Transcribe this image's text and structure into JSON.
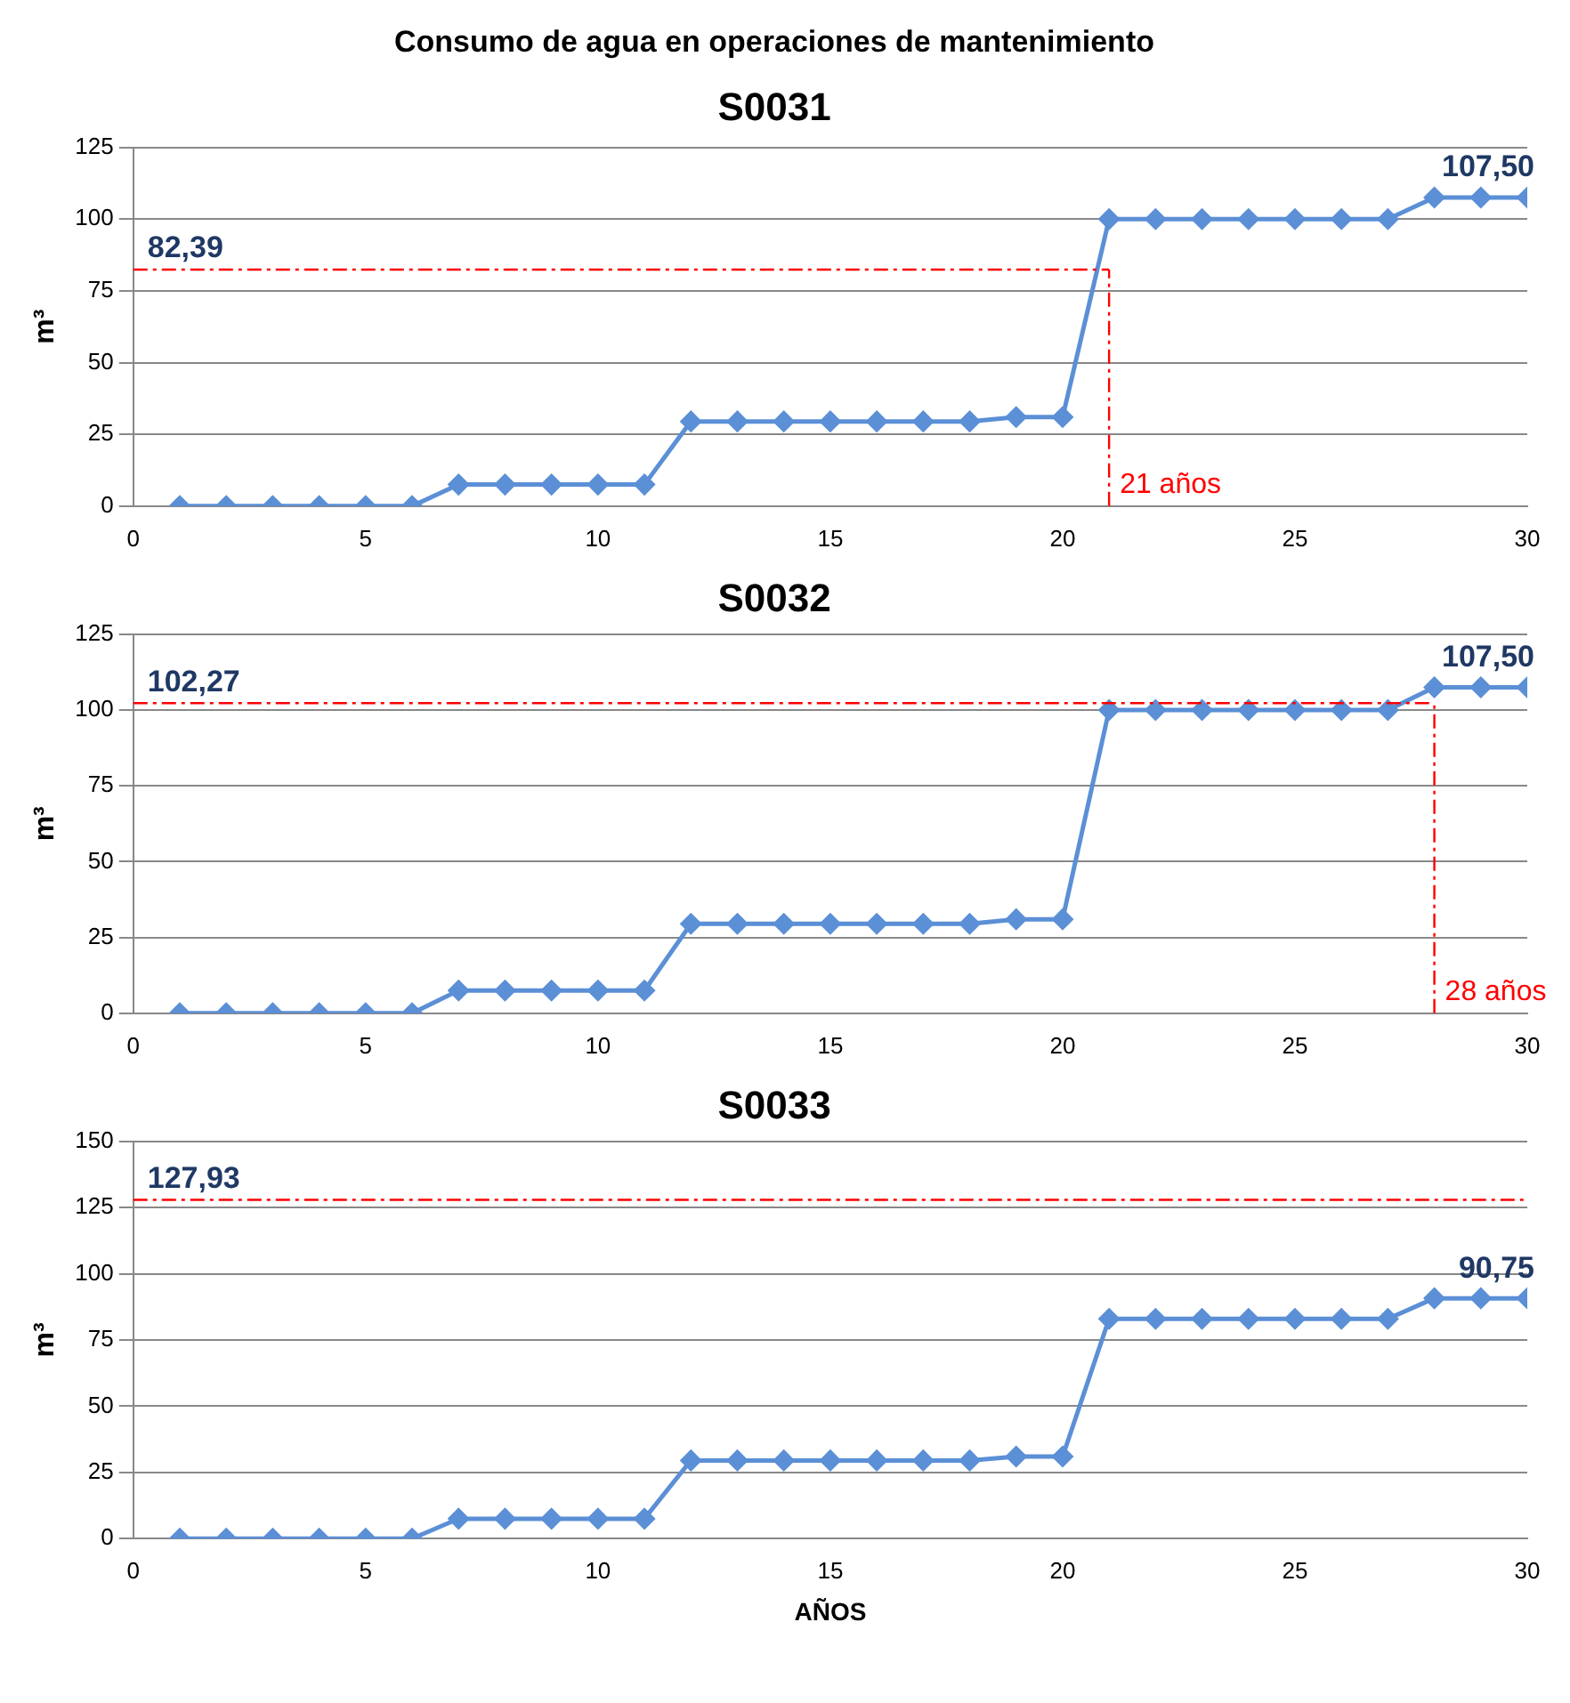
{
  "chart_data": [
    {
      "type": "line",
      "title": "Consumo de agua en operaciones de mantenimiento",
      "subtitle": "S0031",
      "ylabel": "m³",
      "x": [
        1,
        2,
        3,
        4,
        5,
        6,
        7,
        8,
        9,
        10,
        11,
        12,
        13,
        14,
        15,
        16,
        17,
        18,
        19,
        20,
        21,
        22,
        23,
        24,
        25,
        26,
        27,
        28,
        29,
        30
      ],
      "series": [
        {
          "color": "#5b8fd6",
          "values": [
            0,
            0,
            0,
            0,
            0,
            0,
            7.5,
            7.5,
            7.5,
            7.5,
            7.5,
            29.5,
            29.5,
            29.5,
            29.5,
            29.5,
            29.5,
            29.5,
            31,
            31,
            100,
            100,
            100,
            100,
            100,
            100,
            100,
            107.5,
            107.5,
            107.5
          ],
          "value_labels": [
            null,
            null,
            null,
            null,
            null,
            null,
            null,
            null,
            null,
            null,
            null,
            null,
            null,
            null,
            null,
            null,
            null,
            null,
            null,
            null,
            null,
            null,
            null,
            null,
            null,
            null,
            null,
            null,
            null,
            "107,50"
          ]
        }
      ],
      "xlim": [
        0,
        30
      ],
      "xticks": [
        0,
        5,
        10,
        15,
        20,
        25,
        30
      ],
      "ylim": [
        0,
        125
      ],
      "yticks": [
        0,
        25,
        50,
        75,
        100,
        125
      ],
      "grid": "y",
      "marker": "diamond",
      "legend": false,
      "ref_lines": [
        {
          "axis": "y",
          "value": 82.39,
          "label": "82,39",
          "color": "#ff0000",
          "line_style": "dashed"
        },
        {
          "axis": "x",
          "value": 21,
          "label": "21 años",
          "color": "#ff0000",
          "line_style": "dashed"
        }
      ]
    },
    {
      "type": "line",
      "title": "S0032",
      "ylabel": "m³",
      "x": [
        1,
        2,
        3,
        4,
        5,
        6,
        7,
        8,
        9,
        10,
        11,
        12,
        13,
        14,
        15,
        16,
        17,
        18,
        19,
        20,
        21,
        22,
        23,
        24,
        25,
        26,
        27,
        28,
        29,
        30
      ],
      "series": [
        {
          "color": "#5b8fd6",
          "values": [
            0,
            0,
            0,
            0,
            0,
            0,
            7.5,
            7.5,
            7.5,
            7.5,
            7.5,
            29.5,
            29.5,
            29.5,
            29.5,
            29.5,
            29.5,
            29.5,
            31,
            31,
            100,
            100,
            100,
            100,
            100,
            100,
            100,
            107.5,
            107.5,
            107.5
          ],
          "value_labels": [
            null,
            null,
            null,
            null,
            null,
            null,
            null,
            null,
            null,
            null,
            null,
            null,
            null,
            null,
            null,
            null,
            null,
            null,
            null,
            null,
            null,
            null,
            null,
            null,
            null,
            null,
            null,
            null,
            null,
            "107,50"
          ]
        }
      ],
      "xlim": [
        0,
        30
      ],
      "xticks": [
        0,
        5,
        10,
        15,
        20,
        25,
        30
      ],
      "ylim": [
        0,
        125
      ],
      "yticks": [
        0,
        25,
        50,
        75,
        100,
        125
      ],
      "grid": "y",
      "marker": "diamond",
      "legend": false,
      "ref_lines": [
        {
          "axis": "y",
          "value": 102.27,
          "label": "102,27",
          "color": "#ff0000",
          "line_style": "dashed"
        },
        {
          "axis": "x",
          "value": 28,
          "label": "28 años",
          "color": "#ff0000",
          "line_style": "dashed"
        }
      ]
    },
    {
      "type": "line",
      "title": "S0033",
      "xlabel": "AÑOS",
      "ylabel": "m³",
      "x": [
        1,
        2,
        3,
        4,
        5,
        6,
        7,
        8,
        9,
        10,
        11,
        12,
        13,
        14,
        15,
        16,
        17,
        18,
        19,
        20,
        21,
        22,
        23,
        24,
        25,
        26,
        27,
        28,
        29,
        30
      ],
      "series": [
        {
          "color": "#5b8fd6",
          "values": [
            0,
            0,
            0,
            0,
            0,
            0,
            7.5,
            7.5,
            7.5,
            7.5,
            7.5,
            29.5,
            29.5,
            29.5,
            29.5,
            29.5,
            29.5,
            29.5,
            31,
            31,
            83,
            83,
            83,
            83,
            83,
            83,
            83,
            90.75,
            90.75,
            90.75
          ],
          "value_labels": [
            null,
            null,
            null,
            null,
            null,
            null,
            null,
            null,
            null,
            null,
            null,
            null,
            null,
            null,
            null,
            null,
            null,
            null,
            null,
            null,
            null,
            null,
            null,
            null,
            null,
            null,
            null,
            null,
            null,
            "90,75"
          ]
        }
      ],
      "xlim": [
        0,
        30
      ],
      "xticks": [
        0,
        5,
        10,
        15,
        20,
        25,
        30
      ],
      "ylim": [
        0,
        150
      ],
      "yticks": [
        0,
        25,
        50,
        75,
        100,
        125,
        150
      ],
      "grid": "y",
      "marker": "diamond",
      "legend": false,
      "ref_lines": [
        {
          "axis": "y",
          "value": 127.93,
          "label": "127,93",
          "color": "#ff0000",
          "line_style": "dashed"
        }
      ]
    }
  ]
}
